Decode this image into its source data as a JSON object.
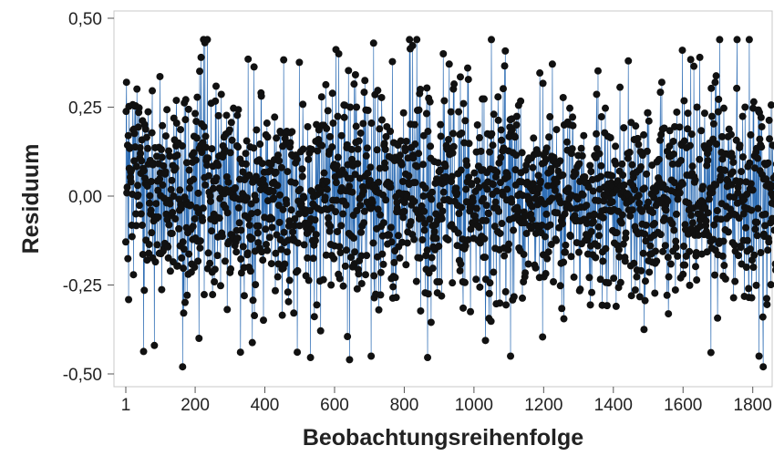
{
  "chart_data": {
    "type": "line",
    "title": "",
    "xlabel": "Beobachtungsreihenfolge",
    "ylabel": "Residuum",
    "xlim": [
      1,
      1880
    ],
    "ylim": [
      -0.5,
      0.5
    ],
    "x_ticks": [
      {
        "value": 1,
        "label": "1"
      },
      {
        "value": 200,
        "label": "200"
      },
      {
        "value": 400,
        "label": "400"
      },
      {
        "value": 600,
        "label": "600"
      },
      {
        "value": 800,
        "label": "800"
      },
      {
        "value": 1000,
        "label": "1000"
      },
      {
        "value": 1200,
        "label": "1200"
      },
      {
        "value": 1400,
        "label": "1400"
      },
      {
        "value": 1600,
        "label": "1600"
      },
      {
        "value": 1800,
        "label": "1800"
      }
    ],
    "y_ticks": [
      {
        "value": 0.5,
        "label": "0,50"
      },
      {
        "value": 0.25,
        "label": "0,25"
      },
      {
        "value": 0.0,
        "label": "0,00"
      },
      {
        "value": -0.25,
        "label": "-0,25"
      },
      {
        "value": -0.5,
        "label": "-0,50"
      }
    ],
    "grid": false,
    "n_points": 1870,
    "residual_range": [
      -0.48,
      0.44
    ],
    "residual_mean": 0.0,
    "residual_sd": 0.15,
    "line_color": "#2f6eb5",
    "marker_color": "#111111",
    "frame_color": "#c8c8c8",
    "notable_points": [
      {
        "x": 712,
        "y": 0.43
      },
      {
        "x": 1755,
        "y": 0.44
      },
      {
        "x": 1790,
        "y": 0.44
      },
      {
        "x": 1598,
        "y": 0.41
      },
      {
        "x": 612,
        "y": 0.4
      },
      {
        "x": 912,
        "y": 0.4
      },
      {
        "x": 1648,
        "y": 0.39
      },
      {
        "x": 643,
        "y": -0.46
      },
      {
        "x": 1830,
        "y": -0.48
      },
      {
        "x": 1818,
        "y": -0.45
      },
      {
        "x": 1105,
        "y": -0.45
      },
      {
        "x": 705,
        "y": -0.45
      },
      {
        "x": 83,
        "y": -0.42
      },
      {
        "x": 1680,
        "y": -0.44
      }
    ]
  }
}
